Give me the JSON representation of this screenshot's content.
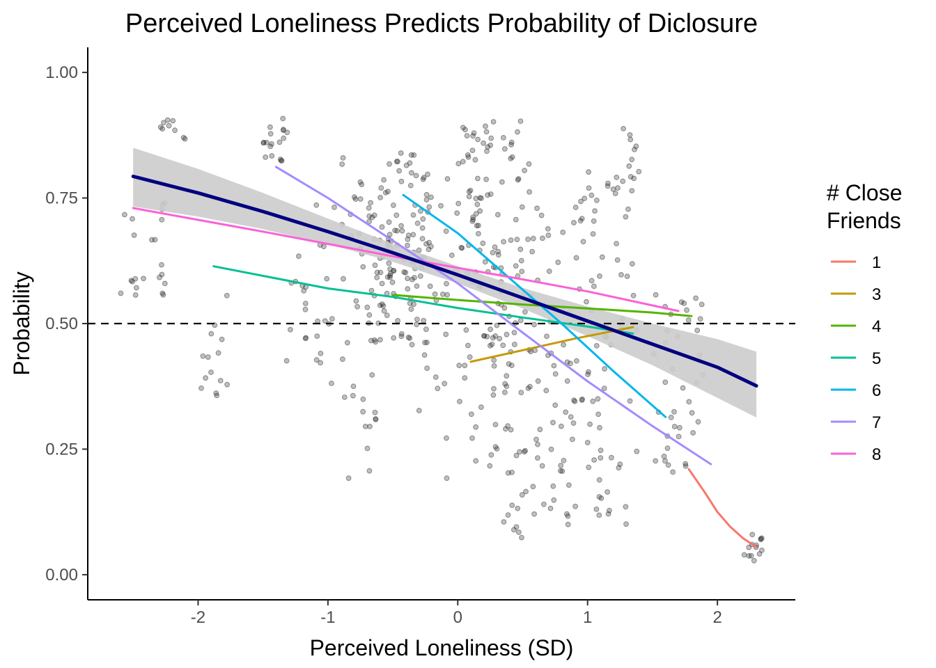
{
  "chart_data": {
    "type": "scatter",
    "title": "Perceived Loneliness Predicts Probability of Diclosure",
    "xlabel": "Perceived Loneliness (SD)",
    "ylabel": "Probability",
    "xlim": [
      -2.85,
      2.6
    ],
    "ylim": [
      -0.05,
      1.05
    ],
    "x_ticks": [
      {
        "value": -2,
        "label": "-2"
      },
      {
        "value": -1,
        "label": "-1"
      },
      {
        "value": 0,
        "label": "0"
      },
      {
        "value": 1,
        "label": "1"
      },
      {
        "value": 2,
        "label": "2"
      }
    ],
    "y_ticks": [
      {
        "value": 0.0,
        "label": "0.00"
      },
      {
        "value": 0.25,
        "label": "0.25"
      },
      {
        "value": 0.5,
        "label": "0.50"
      },
      {
        "value": 0.75,
        "label": "0.75"
      },
      {
        "value": 1.0,
        "label": "1.00"
      }
    ],
    "grid": false,
    "reference_line": {
      "y": 0.5,
      "style": "dashed",
      "color": "#000000"
    },
    "legend": {
      "title_lines": [
        "# Close",
        "Friends"
      ],
      "placement": "right",
      "entries": [
        {
          "label": "1",
          "color": "#F8766D"
        },
        {
          "label": "3",
          "color": "#C49A00"
        },
        {
          "label": "4",
          "color": "#53B400"
        },
        {
          "label": "5",
          "color": "#00C094"
        },
        {
          "label": "6",
          "color": "#00B6EB"
        },
        {
          "label": "7",
          "color": "#A58AFF"
        },
        {
          "label": "8",
          "color": "#FB61D7"
        }
      ]
    },
    "overall_fit": {
      "color": "#000080",
      "x": [
        -2.5,
        -2.0,
        -1.5,
        -1.0,
        -0.5,
        0.0,
        0.5,
        1.0,
        1.5,
        2.0,
        2.3
      ],
      "y": [
        0.793,
        0.76,
        0.723,
        0.683,
        0.641,
        0.597,
        0.551,
        0.505,
        0.459,
        0.413,
        0.376
      ],
      "ci_lower": [
        0.733,
        0.713,
        0.688,
        0.658,
        0.623,
        0.58,
        0.53,
        0.475,
        0.417,
        0.352,
        0.313
      ],
      "ci_upper": [
        0.85,
        0.808,
        0.76,
        0.709,
        0.659,
        0.614,
        0.571,
        0.534,
        0.5,
        0.469,
        0.444
      ],
      "ci_color": "#cccccc"
    },
    "series": [
      {
        "name": "1",
        "color": "#F8766D",
        "x": [
          1.78,
          1.9,
          2.0,
          2.1,
          2.2,
          2.3
        ],
        "y": [
          0.21,
          0.165,
          0.125,
          0.095,
          0.072,
          0.055
        ]
      },
      {
        "name": "3",
        "color": "#C49A00",
        "x": [
          0.1,
          0.5,
          0.9,
          1.35
        ],
        "y": [
          0.424,
          0.447,
          0.47,
          0.493
        ]
      },
      {
        "name": "4",
        "color": "#53B400",
        "x": [
          -0.5,
          0.0,
          0.5,
          1.0,
          1.5,
          1.8
        ],
        "y": [
          0.557,
          0.547,
          0.538,
          0.53,
          0.522,
          0.515
        ]
      },
      {
        "name": "5",
        "color": "#00C094",
        "x": [
          -1.88,
          -1.0,
          -0.5,
          0.0,
          0.5,
          1.0,
          1.35
        ],
        "y": [
          0.614,
          0.57,
          0.553,
          0.531,
          0.512,
          0.494,
          0.48
        ]
      },
      {
        "name": "6",
        "color": "#00B6EB",
        "x": [
          -0.42,
          0.0,
          0.4,
          0.8,
          1.2,
          1.6
        ],
        "y": [
          0.756,
          0.68,
          0.59,
          0.5,
          0.405,
          0.314
        ]
      },
      {
        "name": "7",
        "color": "#A58AFF",
        "x": [
          -1.4,
          -1.0,
          -0.5,
          0.0,
          0.5,
          1.0,
          1.5,
          1.95
        ],
        "y": [
          0.812,
          0.75,
          0.665,
          0.58,
          0.482,
          0.385,
          0.296,
          0.22
        ]
      },
      {
        "name": "8",
        "color": "#FB61D7",
        "x": [
          -2.5,
          -1.5,
          -0.5,
          0.5,
          1.0,
          1.7
        ],
        "y": [
          0.73,
          0.683,
          0.634,
          0.588,
          0.564,
          0.525
        ]
      }
    ],
    "points": {
      "color": "#000000",
      "opacity": 0.25,
      "stroke_color": "#444444",
      "clusters": [
        {
          "x_range": [
            -2.6,
            -2.25
          ],
          "y_range": [
            0.55,
            0.75
          ],
          "n": 22
        },
        {
          "x_range": [
            -2.3,
            -2.1
          ],
          "y_range": [
            0.84,
            0.93
          ],
          "n": 9
        },
        {
          "x_range": [
            -2.0,
            -1.75
          ],
          "y_range": [
            0.34,
            0.56
          ],
          "n": 14
        },
        {
          "x_range": [
            -1.5,
            -1.3
          ],
          "y_range": [
            0.82,
            0.91
          ],
          "n": 18
        },
        {
          "x_range": [
            -1.35,
            -1.15
          ],
          "y_range": [
            0.42,
            0.65
          ],
          "n": 12
        },
        {
          "x_range": [
            -1.1,
            -0.95
          ],
          "y_range": [
            0.38,
            0.76
          ],
          "n": 14
        },
        {
          "x_range": [
            -0.9,
            -0.6
          ],
          "y_range": [
            0.19,
            0.85
          ],
          "n": 40
        },
        {
          "x_range": [
            -0.7,
            -0.2
          ],
          "y_range": [
            0.45,
            0.8
          ],
          "n": 90
        },
        {
          "x_range": [
            -0.6,
            0.2
          ],
          "y_range": [
            0.5,
            0.85
          ],
          "n": 70
        },
        {
          "x_range": [
            -0.3,
            0.3
          ],
          "y_range": [
            0.19,
            0.5
          ],
          "n": 30
        },
        {
          "x_range": [
            0.0,
            0.6
          ],
          "y_range": [
            0.6,
            0.92
          ],
          "n": 70
        },
        {
          "x_range": [
            0.2,
            0.6
          ],
          "y_range": [
            0.36,
            0.6
          ],
          "n": 40
        },
        {
          "x_range": [
            0.3,
            0.8
          ],
          "y_range": [
            0.07,
            0.3
          ],
          "n": 30
        },
        {
          "x_range": [
            0.6,
            1.1
          ],
          "y_range": [
            0.1,
            0.75
          ],
          "n": 70
        },
        {
          "x_range": [
            1.0,
            1.4
          ],
          "y_range": [
            0.1,
            0.89
          ],
          "n": 60
        },
        {
          "x_range": [
            1.5,
            1.9
          ],
          "y_range": [
            0.2,
            0.56
          ],
          "n": 40
        },
        {
          "x_range": [
            2.2,
            2.35
          ],
          "y_range": [
            0.025,
            0.09
          ],
          "n": 14
        }
      ]
    }
  }
}
